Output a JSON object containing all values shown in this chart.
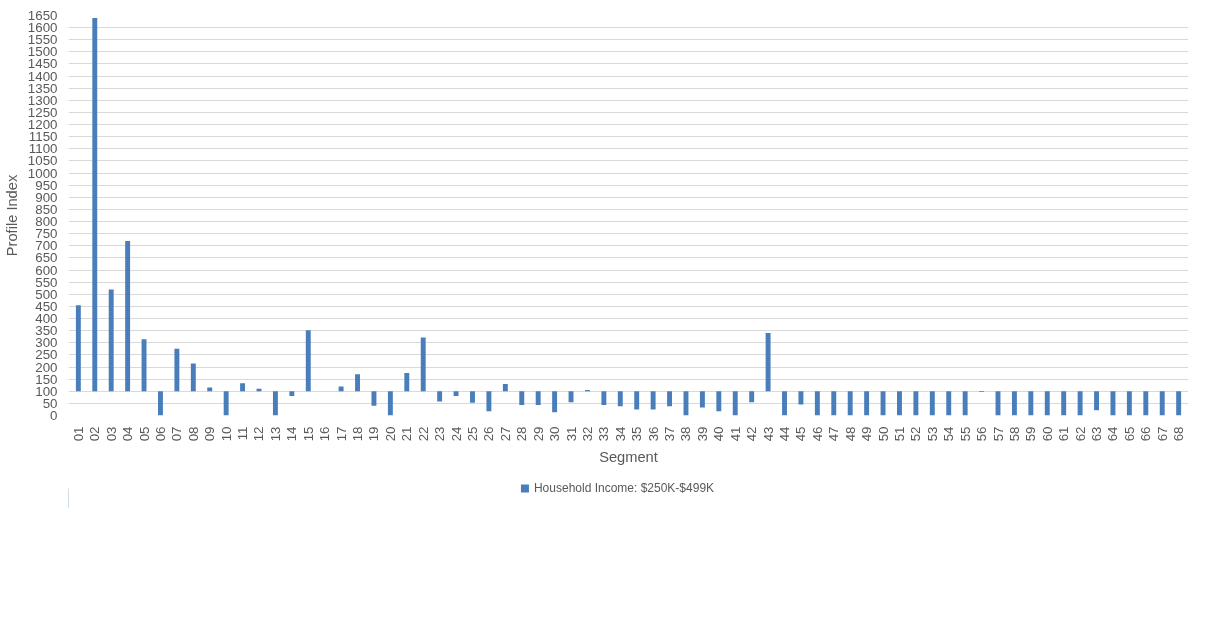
{
  "chart_data": {
    "type": "bar",
    "xlabel": "Segment",
    "ylabel": "Profile Index",
    "categories": [
      "01",
      "02",
      "03",
      "04",
      "05",
      "06",
      "07",
      "08",
      "09",
      "10",
      "11",
      "12",
      "13",
      "14",
      "15",
      "16",
      "17",
      "18",
      "19",
      "20",
      "21",
      "22",
      "23",
      "24",
      "25",
      "26",
      "27",
      "28",
      "29",
      "30",
      "31",
      "32",
      "33",
      "34",
      "35",
      "36",
      "37",
      "38",
      "39",
      "40",
      "41",
      "42",
      "43",
      "44",
      "45",
      "46",
      "47",
      "48",
      "49",
      "50",
      "51",
      "52",
      "53",
      "54",
      "55",
      "56",
      "57",
      "58",
      "59",
      "60",
      "61",
      "62",
      "63",
      "64",
      "65",
      "66",
      "67",
      "68"
    ],
    "series": [
      {
        "name": "Household Income: $250K-$499K",
        "color": "#4a7ebb",
        "base": [
          100,
          100,
          100,
          100,
          100,
          100,
          100,
          100,
          100,
          100,
          100,
          100,
          100,
          100,
          100,
          null,
          100,
          100,
          100,
          100,
          100,
          100,
          100,
          100,
          100,
          100,
          100,
          100,
          100,
          100,
          100,
          100,
          100,
          100,
          100,
          100,
          100,
          100,
          100,
          100,
          100,
          100,
          100,
          100,
          100,
          100,
          100,
          100,
          100,
          100,
          100,
          100,
          100,
          100,
          100,
          100,
          100,
          100,
          100,
          100,
          100,
          100,
          100,
          100,
          100,
          100,
          100,
          100
        ],
        "values": [
          355,
          1540,
          420,
          620,
          215,
          -100,
          175,
          115,
          15,
          -100,
          33,
          10,
          -100,
          -20,
          252,
          null,
          20,
          70,
          -60,
          -100,
          75,
          222,
          -42,
          -20,
          -47,
          -82,
          30,
          -57,
          -57,
          -87,
          -45,
          5,
          -57,
          -62,
          -75,
          -75,
          -62,
          -100,
          -67,
          -82,
          -100,
          -45,
          240,
          -100,
          -55,
          -100,
          -100,
          -100,
          -100,
          -100,
          -100,
          -100,
          -100,
          -100,
          -100,
          -3,
          -100,
          -100,
          -100,
          -100,
          -100,
          -100,
          -78,
          -100,
          -100,
          -100,
          -100,
          -100
        ]
      }
    ],
    "ylim": [
      0,
      1650
    ],
    "yticks": [
      0,
      50,
      100,
      150,
      200,
      250,
      300,
      350,
      400,
      450,
      500,
      550,
      600,
      650,
      700,
      750,
      800,
      850,
      900,
      950,
      1000,
      1050,
      1100,
      1150,
      1200,
      1250,
      1300,
      1350,
      1400,
      1450,
      1500,
      1550,
      1600,
      1650
    ],
    "grid": "y",
    "legend": "bottom"
  }
}
